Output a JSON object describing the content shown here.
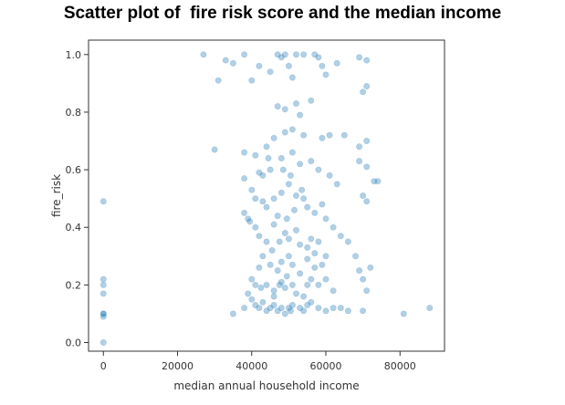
{
  "page": {
    "title": "Scatter plot of  fire risk score and the median income"
  },
  "chart_data": {
    "type": "scatter",
    "title": "Scatter plot of  fire risk score and the median income",
    "xlabel": "median annual household income",
    "ylabel": "fire_risk",
    "xlim": [
      -4000,
      92000
    ],
    "ylim": [
      -0.03,
      1.05
    ],
    "x_ticks": [
      0,
      20000,
      40000,
      60000,
      80000
    ],
    "y_ticks": [
      0.0,
      0.2,
      0.4,
      0.6,
      0.8,
      1.0
    ],
    "x_tick_labels": [
      "0",
      "20000",
      "40000",
      "60000",
      "80000"
    ],
    "y_tick_labels": [
      "0.0",
      "0.2",
      "0.4",
      "0.6",
      "0.8",
      "1.0"
    ],
    "grid": false,
    "point_color": "#1f77b4",
    "point_alpha": 0.35,
    "series": [
      {
        "points": [
          [
            0,
            0.0
          ],
          [
            0,
            0.09
          ],
          [
            0,
            0.1
          ],
          [
            0,
            0.1
          ],
          [
            0,
            0.17
          ],
          [
            0,
            0.2
          ],
          [
            0,
            0.22
          ],
          [
            0,
            0.49
          ],
          [
            27000,
            1.0
          ],
          [
            31000,
            0.91
          ],
          [
            33000,
            0.98
          ],
          [
            35000,
            0.97
          ],
          [
            38000,
            1.0
          ],
          [
            40000,
            0.91
          ],
          [
            42000,
            0.96
          ],
          [
            45000,
            0.94
          ],
          [
            47000,
            1.0
          ],
          [
            48000,
            0.99
          ],
          [
            49000,
            1.0
          ],
          [
            50000,
            0.96
          ],
          [
            51000,
            0.92
          ],
          [
            52000,
            1.0
          ],
          [
            54000,
            1.0
          ],
          [
            57000,
            1.0
          ],
          [
            58000,
            0.99
          ],
          [
            59000,
            0.96
          ],
          [
            60000,
            0.93
          ],
          [
            63000,
            0.97
          ],
          [
            69000,
            0.99
          ],
          [
            71000,
            0.98
          ],
          [
            70000,
            0.87
          ],
          [
            71000,
            0.89
          ],
          [
            56000,
            0.84
          ],
          [
            47000,
            0.82
          ],
          [
            49000,
            0.81
          ],
          [
            52000,
            0.83
          ],
          [
            53000,
            0.79
          ],
          [
            51000,
            0.74
          ],
          [
            30000,
            0.67
          ],
          [
            38000,
            0.66
          ],
          [
            41000,
            0.65
          ],
          [
            44000,
            0.68
          ],
          [
            46000,
            0.71
          ],
          [
            49000,
            0.73
          ],
          [
            54000,
            0.72
          ],
          [
            59000,
            0.71
          ],
          [
            61000,
            0.72
          ],
          [
            65000,
            0.72
          ],
          [
            69000,
            0.68
          ],
          [
            71000,
            0.7
          ],
          [
            69000,
            0.63
          ],
          [
            71000,
            0.61
          ],
          [
            73000,
            0.56
          ],
          [
            74000,
            0.56
          ],
          [
            70000,
            0.51
          ],
          [
            71000,
            0.49
          ],
          [
            61000,
            0.58
          ],
          [
            63000,
            0.55
          ],
          [
            58000,
            0.6
          ],
          [
            56000,
            0.63
          ],
          [
            53000,
            0.62
          ],
          [
            51000,
            0.66
          ],
          [
            48000,
            0.64
          ],
          [
            45000,
            0.6
          ],
          [
            43000,
            0.58
          ],
          [
            42000,
            0.59
          ],
          [
            40000,
            0.53
          ],
          [
            38000,
            0.57
          ],
          [
            41000,
            0.5
          ],
          [
            43000,
            0.49
          ],
          [
            44000,
            0.47
          ],
          [
            46000,
            0.5
          ],
          [
            48000,
            0.52
          ],
          [
            50000,
            0.55
          ],
          [
            52000,
            0.51
          ],
          [
            54000,
            0.5
          ],
          [
            55000,
            0.47
          ],
          [
            57000,
            0.45
          ],
          [
            59000,
            0.48
          ],
          [
            60000,
            0.43
          ],
          [
            38000,
            0.45
          ],
          [
            39000,
            0.43
          ],
          [
            39500,
            0.42
          ],
          [
            41000,
            0.4
          ],
          [
            42000,
            0.37
          ],
          [
            44000,
            0.35
          ],
          [
            46000,
            0.41
          ],
          [
            47000,
            0.44
          ],
          [
            49000,
            0.38
          ],
          [
            50000,
            0.36
          ],
          [
            52000,
            0.39
          ],
          [
            53000,
            0.34
          ],
          [
            55000,
            0.33
          ],
          [
            56000,
            0.36
          ],
          [
            57000,
            0.31
          ],
          [
            58000,
            0.35
          ],
          [
            62000,
            0.4
          ],
          [
            64000,
            0.37
          ],
          [
            66000,
            0.35
          ],
          [
            68000,
            0.3
          ],
          [
            69000,
            0.25
          ],
          [
            70000,
            0.22
          ],
          [
            71000,
            0.18
          ],
          [
            72000,
            0.26
          ],
          [
            60000,
            0.3
          ],
          [
            59000,
            0.27
          ],
          [
            57000,
            0.26
          ],
          [
            55000,
            0.29
          ],
          [
            53000,
            0.24
          ],
          [
            51000,
            0.27
          ],
          [
            50000,
            0.3
          ],
          [
            48000,
            0.28
          ],
          [
            47000,
            0.25
          ],
          [
            45000,
            0.27
          ],
          [
            43000,
            0.3
          ],
          [
            42000,
            0.26
          ],
          [
            40000,
            0.22
          ],
          [
            41000,
            0.2
          ],
          [
            42500,
            0.19
          ],
          [
            44000,
            0.2
          ],
          [
            46000,
            0.18
          ],
          [
            48000,
            0.21
          ],
          [
            49000,
            0.19
          ],
          [
            51000,
            0.2
          ],
          [
            52000,
            0.17
          ],
          [
            54000,
            0.16
          ],
          [
            55000,
            0.2
          ],
          [
            56000,
            0.22
          ],
          [
            58000,
            0.2
          ],
          [
            60000,
            0.22
          ],
          [
            62000,
            0.18
          ],
          [
            39000,
            0.17
          ],
          [
            40000,
            0.15
          ],
          [
            41000,
            0.13
          ],
          [
            42000,
            0.12
          ],
          [
            43000,
            0.14
          ],
          [
            44000,
            0.11
          ],
          [
            45000,
            0.12
          ],
          [
            46000,
            0.13
          ],
          [
            47000,
            0.11
          ],
          [
            48000,
            0.12
          ],
          [
            49000,
            0.1
          ],
          [
            50000,
            0.12
          ],
          [
            50500,
            0.11
          ],
          [
            51000,
            0.13
          ],
          [
            53000,
            0.12
          ],
          [
            54000,
            0.11
          ],
          [
            55000,
            0.13
          ],
          [
            56000,
            0.14
          ],
          [
            58000,
            0.12
          ],
          [
            60000,
            0.11
          ],
          [
            62000,
            0.12
          ],
          [
            64000,
            0.12
          ],
          [
            66000,
            0.11
          ],
          [
            70000,
            0.11
          ],
          [
            35000,
            0.1
          ],
          [
            38000,
            0.12
          ],
          [
            81000,
            0.1
          ],
          [
            88000,
            0.12
          ],
          [
            46000,
            0.16
          ],
          [
            47500,
            0.2
          ],
          [
            49500,
            0.23
          ],
          [
            45500,
            0.32
          ],
          [
            47500,
            0.35
          ],
          [
            49500,
            0.43
          ],
          [
            51500,
            0.46
          ],
          [
            53500,
            0.53
          ],
          [
            50500,
            0.58
          ],
          [
            48500,
            0.6
          ],
          [
            44500,
            0.64
          ]
        ]
      }
    ]
  }
}
